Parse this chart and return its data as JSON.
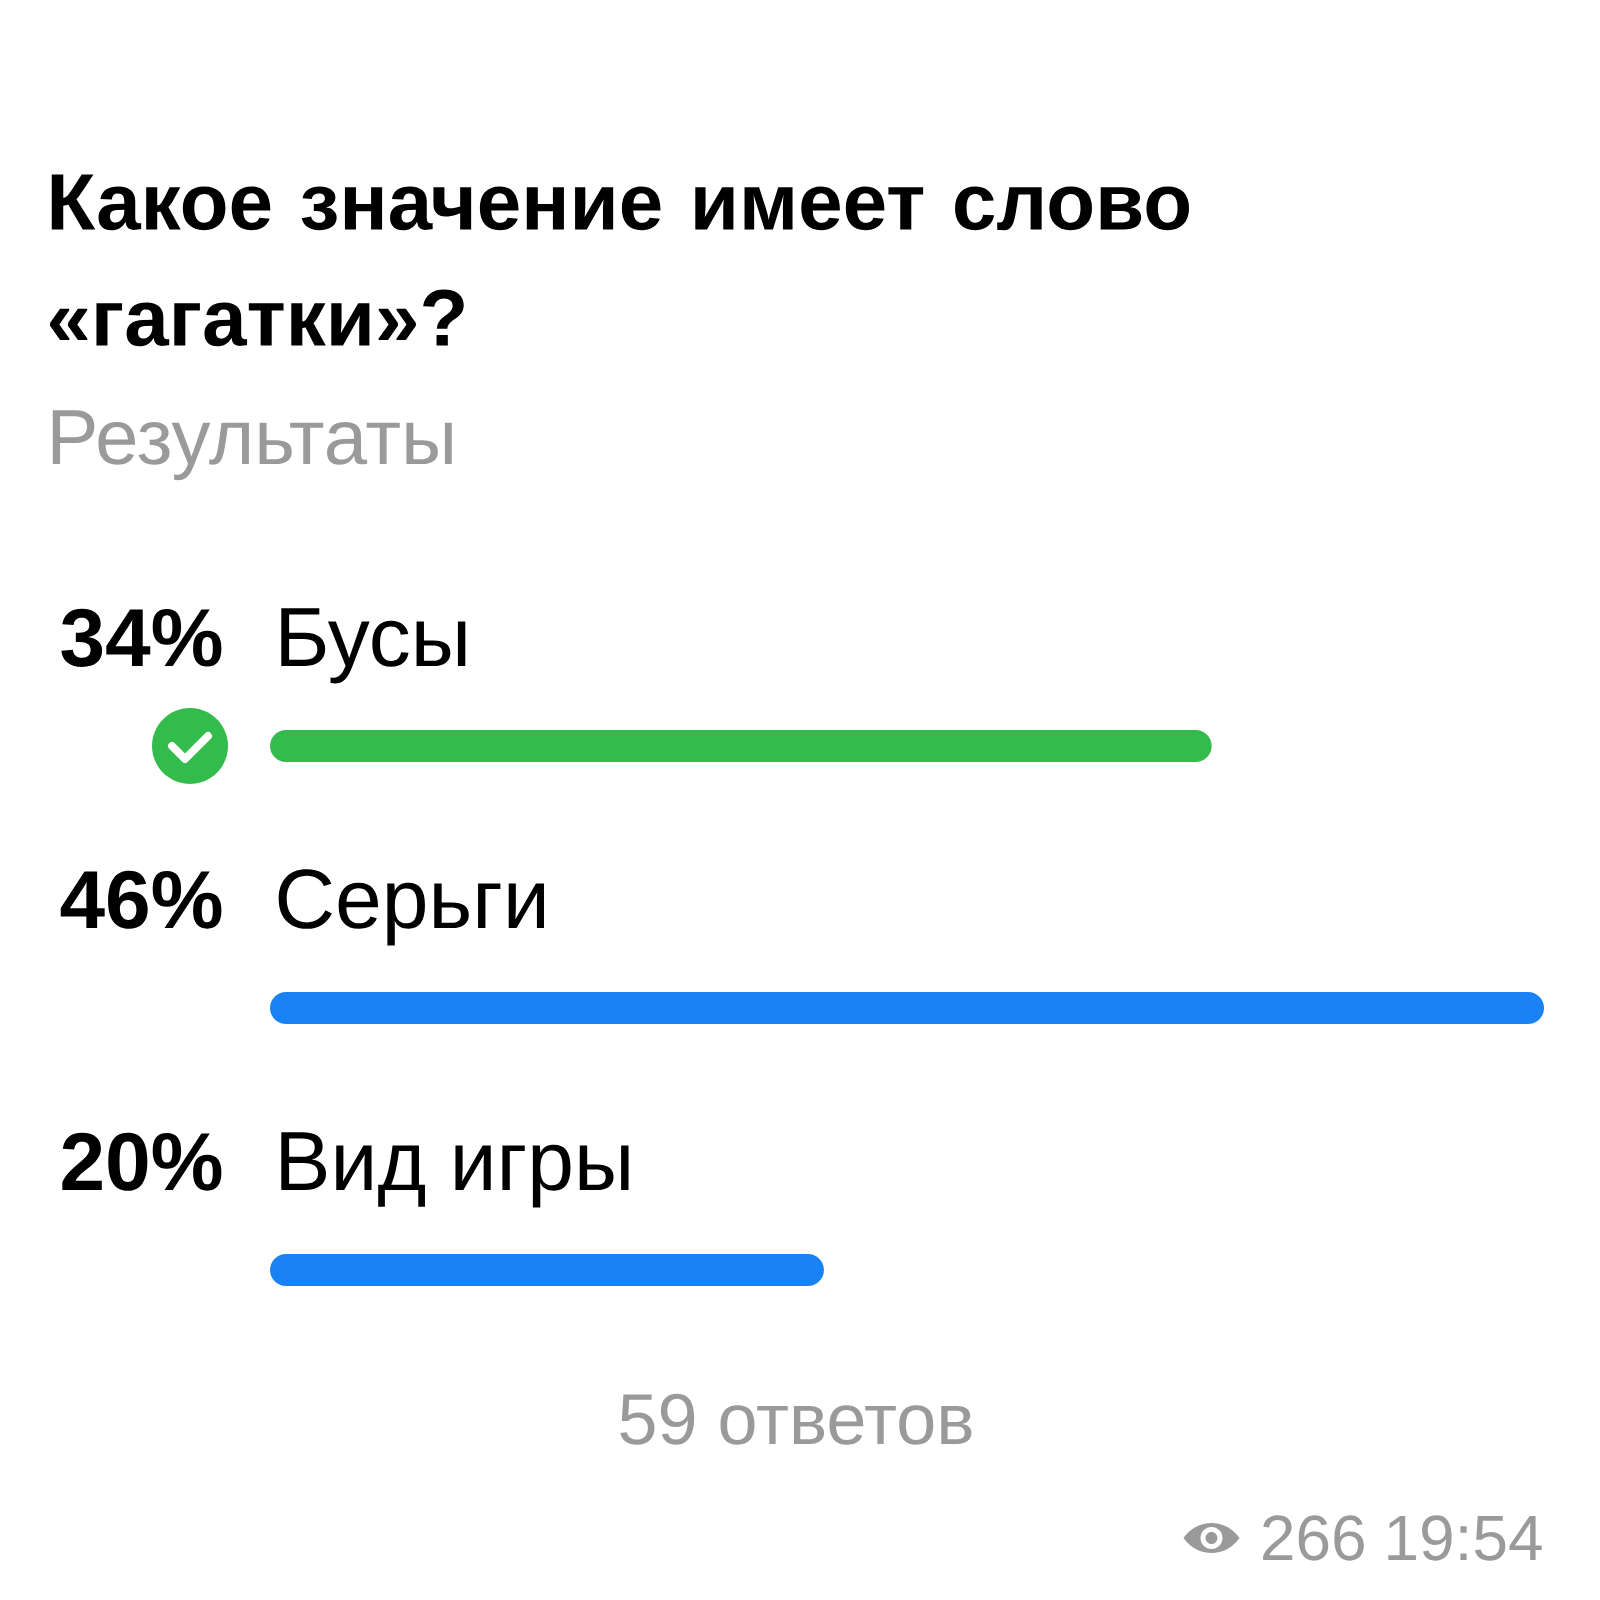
{
  "chart_data": {
    "type": "bar",
    "orientation": "horizontal",
    "title": "Какое значение имеет слово «гагатки»?",
    "subtitle": "Результаты",
    "categories": [
      "Бусы",
      "Серьги",
      "Вид игры"
    ],
    "values": [
      34,
      46,
      20
    ],
    "value_labels": [
      "34%",
      "46%",
      "20%"
    ],
    "colors": [
      "#33bb4c",
      "#1982f4",
      "#1982f4"
    ],
    "xlim": [
      0,
      46
    ],
    "annotations": [
      "59 ответов",
      "266",
      "19:54"
    ]
  }
}
